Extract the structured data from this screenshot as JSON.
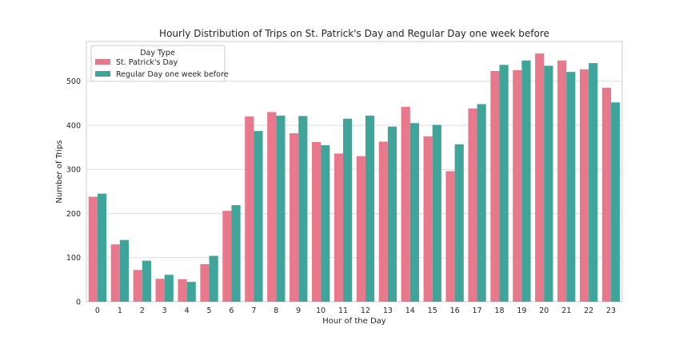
{
  "chart_data": {
    "type": "bar",
    "title": "Hourly Distribution of Trips on St. Patrick's Day and Regular Day one week before",
    "xlabel": "Hour of the Day",
    "ylabel": "Number of Trips",
    "ylim": [
      0,
      590
    ],
    "yticks": [
      "0",
      "100",
      "200",
      "300",
      "400",
      "500"
    ],
    "grid": "horizontal",
    "legend": {
      "title": "Day Type",
      "placement": "top-left"
    },
    "categories": [
      "0",
      "1",
      "2",
      "3",
      "4",
      "5",
      "6",
      "7",
      "8",
      "9",
      "10",
      "11",
      "12",
      "13",
      "14",
      "15",
      "16",
      "17",
      "18",
      "19",
      "20",
      "21",
      "22",
      "23"
    ],
    "series": [
      {
        "name": "St. Patrick's Day",
        "color": "#e8798c",
        "values": [
          238,
          130,
          72,
          52,
          51,
          85,
          206,
          420,
          430,
          382,
          362,
          336,
          330,
          363,
          442,
          375,
          296,
          438,
          523,
          525,
          563,
          547,
          527,
          485
        ]
      },
      {
        "name": "Regular Day one week before",
        "color": "#3fa59a",
        "values": [
          245,
          140,
          93,
          61,
          45,
          104,
          219,
          387,
          422,
          421,
          355,
          415,
          422,
          397,
          405,
          401,
          357,
          448,
          537,
          547,
          535,
          521,
          541,
          452
        ]
      }
    ]
  }
}
